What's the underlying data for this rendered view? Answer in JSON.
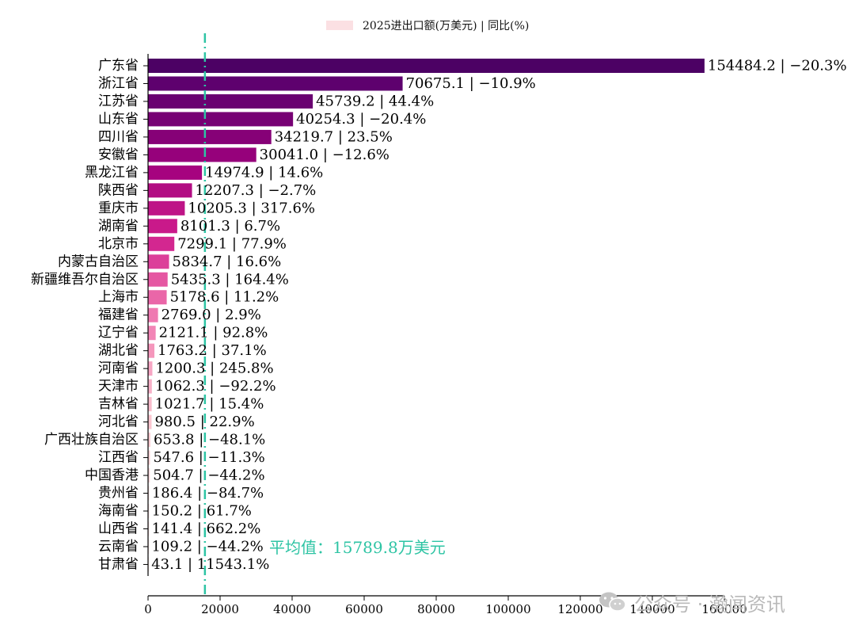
{
  "chart_data": {
    "type": "bar",
    "orientation": "horizontal",
    "legend": "2025进出口额(万美元) | 同比(%)",
    "legend_position": "top-center",
    "categories": [
      "广东省",
      "浙江省",
      "江苏省",
      "山东省",
      "四川省",
      "安徽省",
      "黑龙江省",
      "陕西省",
      "重庆市",
      "湖南省",
      "北京市",
      "内蒙古自治区",
      "新疆维吾尔自治区",
      "上海市",
      "福建省",
      "辽宁省",
      "湖北省",
      "河南省",
      "天津市",
      "吉林省",
      "河北省",
      "广西壮族自治区",
      "江西省",
      "中国香港",
      "贵州省",
      "海南省",
      "山西省",
      "云南省",
      "甘肃省"
    ],
    "values": [
      154484.2,
      70675.1,
      45739.2,
      40254.3,
      34219.7,
      30041.0,
      14974.9,
      12207.3,
      10205.3,
      8101.3,
      7299.1,
      5834.7,
      5435.3,
      5178.6,
      2769.0,
      2121.1,
      1763.2,
      1200.3,
      1062.3,
      1021.7,
      980.5,
      653.8,
      547.6,
      504.7,
      186.4,
      150.2,
      141.4,
      109.2,
      43.1
    ],
    "yoy": [
      "-20.3%",
      "-10.9%",
      "44.4%",
      "-20.4%",
      "23.5%",
      "-12.6%",
      "14.6%",
      "-2.7%",
      "317.6%",
      "6.7%",
      "77.9%",
      "16.6%",
      "164.4%",
      "11.2%",
      "2.9%",
      "92.8%",
      "37.1%",
      "245.8%",
      "-92.2%",
      "15.4%",
      "22.9%",
      "-48.1%",
      "-11.3%",
      "-44.2%",
      "-84.7%",
      "61.7%",
      "662.2%",
      "-44.2%",
      "11543.1%"
    ],
    "data_labels": [
      "154484.2 | −20.3%",
      "70675.1 | −10.9%",
      "45739.2 | 44.4%",
      "40254.3 | −20.4%",
      "34219.7 | 23.5%",
      "30041.0 | −12.6%",
      "14974.9 | 14.6%",
      "12207.3 | −2.7%",
      "10205.3 | 317.6%",
      "8101.3 | 6.7%",
      "7299.1 | 77.9%",
      "5834.7 | 16.6%",
      "5435.3 | 164.4%",
      "5178.6 | 11.2%",
      "2769.0 | 2.9%",
      "2121.1 | 92.8%",
      "1763.2 | 37.1%",
      "1200.3 | 245.8%",
      "1062.3 | −92.2%",
      "1021.7 | 15.4%",
      "980.5 | 22.9%",
      "653.8 | −48.1%",
      "547.6 | −11.3%",
      "504.7 | −44.2%",
      "186.4 | −84.7%",
      "150.2 | 61.7%",
      "141.4 | 662.2%",
      "109.2 | −44.2%",
      "43.1 | 11543.1%"
    ],
    "xlim": [
      0,
      160000
    ],
    "xticks": [
      0,
      20000,
      40000,
      60000,
      80000,
      100000,
      120000,
      140000,
      160000
    ],
    "mean_value": 15789.8,
    "mean_label": "平均值：15789.8万美元",
    "mean_color": "#2ec4a4",
    "bar_colors": [
      "#4c0164",
      "#5e016e",
      "#6a0171",
      "#770174",
      "#860177",
      "#96017b",
      "#a6037f",
      "#b20d83",
      "#be1487",
      "#c9198a",
      "#d32790",
      "#dc3f9a",
      "#e557a2",
      "#ea66a8",
      "#ef79b1",
      "#f285b6",
      "#f597bc",
      "#f7a6c4",
      "#f8b1c8",
      "#f9bccc",
      "#fbc6d0",
      "#fbcdd3",
      "#fbd3d6",
      "#fcdade",
      "#fce0e3",
      "#fce4e5",
      "#fde8e8",
      "#fdebea",
      "#fdeeed"
    ],
    "grid": false,
    "x_axis_label": "",
    "y_axis_label": ""
  },
  "watermark": {
    "text": "公众号 · 瀚闻资讯",
    "icon": "wechat-icon"
  }
}
